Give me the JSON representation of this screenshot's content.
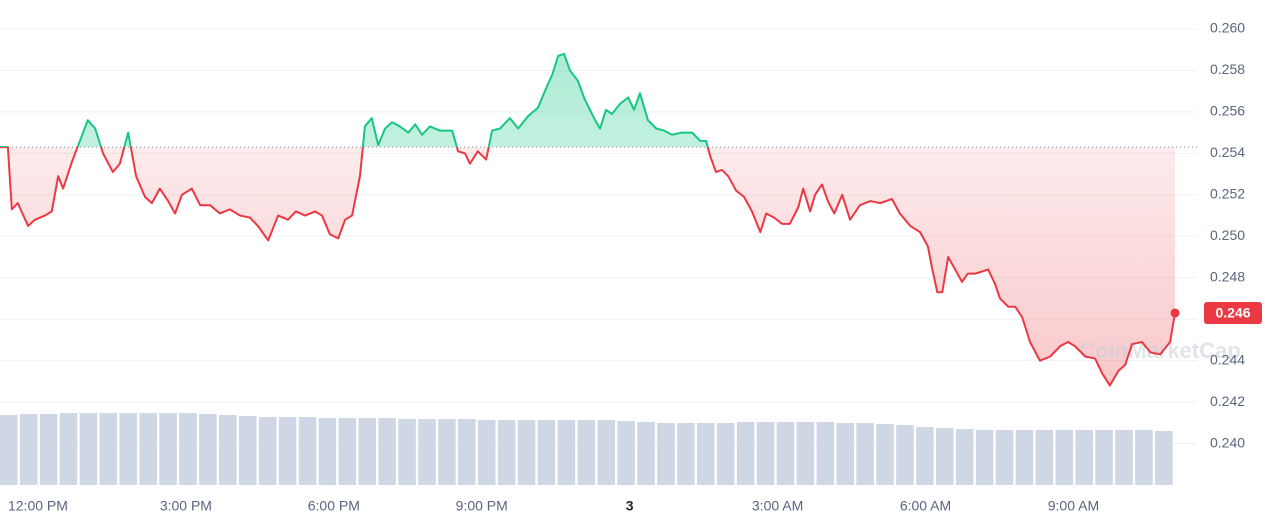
{
  "chart_data": {
    "type": "line",
    "watermark": "CoinMarketCap",
    "baseline": 0.2543,
    "up_color": "#16c784",
    "down_color": "#ea3943",
    "volume_color": "#cfd6e4",
    "grid": true,
    "xlim": [
      -0.77,
      23.06
    ],
    "xticks": [
      {
        "value": 0,
        "label": "12:00 PM"
      },
      {
        "value": 3,
        "label": "3:00 PM"
      },
      {
        "value": 6,
        "label": "6:00 PM"
      },
      {
        "value": 9,
        "label": "9:00 PM"
      },
      {
        "value": 12,
        "label": "3",
        "bold": true
      },
      {
        "value": 15,
        "label": "3:00 AM"
      },
      {
        "value": 18,
        "label": "6:00 AM"
      },
      {
        "value": 21,
        "label": "9:00 AM"
      }
    ],
    "ylim": [
      0.238,
      0.2614
    ],
    "yticks": [
      {
        "value": 0.24,
        "label": "0.240"
      },
      0.242,
      0.244,
      0.246,
      0.248,
      {
        "value": 0.25,
        "label": "0.250"
      },
      0.252,
      0.254,
      0.256,
      0.258,
      {
        "value": 0.26,
        "label": "0.260"
      }
    ],
    "last_label": "0.246",
    "series": [
      {
        "x": [
          -0.77,
          -0.61,
          -0.53,
          -0.41,
          -0.2,
          -0.06,
          0.14,
          0.28,
          0.41,
          0.51,
          0.69,
          0.85,
          1.01,
          1.16,
          1.32,
          1.52,
          1.66,
          1.83,
          1.99,
          2.17,
          2.31,
          2.47,
          2.64,
          2.78,
          2.92,
          3.12,
          3.29,
          3.49,
          3.69,
          3.89,
          4.1,
          4.3,
          4.46,
          4.67,
          4.87,
          5.07,
          5.23,
          5.42,
          5.62,
          5.76,
          5.92,
          6.09,
          6.23,
          6.37,
          6.53,
          6.63,
          6.77,
          6.9,
          7.04,
          7.18,
          7.34,
          7.51,
          7.65,
          7.79,
          7.95,
          8.15,
          8.4,
          8.52,
          8.66,
          8.76,
          8.92,
          9.09,
          9.21,
          9.37,
          9.57,
          9.74,
          9.94,
          10.14,
          10.28,
          10.43,
          10.55,
          10.67,
          10.79,
          10.95,
          11.09,
          11.3,
          11.4,
          11.52,
          11.64,
          11.81,
          11.97,
          12.09,
          12.21,
          12.37,
          12.54,
          12.7,
          12.86,
          13.06,
          13.27,
          13.43,
          13.55,
          13.63,
          13.75,
          13.87,
          14.0,
          14.16,
          14.32,
          14.48,
          14.65,
          14.77,
          14.93,
          15.09,
          15.25,
          15.42,
          15.52,
          15.66,
          15.76,
          15.9,
          16.02,
          16.15,
          16.31,
          16.47,
          16.67,
          16.88,
          17.08,
          17.32,
          17.48,
          17.69,
          17.89,
          18.05,
          18.13,
          18.24,
          18.34,
          18.46,
          18.6,
          18.74,
          18.86,
          19.01,
          19.15,
          19.27,
          19.41,
          19.51,
          19.68,
          19.82,
          19.96,
          20.12,
          20.32,
          20.53,
          20.73,
          20.89,
          21.03,
          21.24,
          21.44,
          21.58,
          21.74,
          21.91,
          22.05,
          22.19,
          22.39,
          22.56,
          22.76,
          22.96,
          23.06
        ],
        "values": [
          0.2543,
          0.2543,
          0.2513,
          0.2516,
          0.2505,
          0.2508,
          0.251,
          0.2512,
          0.2529,
          0.2523,
          0.2536,
          0.2546,
          0.2556,
          0.2552,
          0.254,
          0.2531,
          0.2535,
          0.255,
          0.2529,
          0.2519,
          0.2516,
          0.2523,
          0.2517,
          0.2511,
          0.252,
          0.2523,
          0.2515,
          0.2515,
          0.2511,
          0.2513,
          0.251,
          0.2509,
          0.2505,
          0.2498,
          0.251,
          0.2508,
          0.2512,
          0.251,
          0.2512,
          0.251,
          0.2501,
          0.2499,
          0.2508,
          0.251,
          0.2529,
          0.2553,
          0.2557,
          0.2544,
          0.2552,
          0.2555,
          0.2553,
          0.255,
          0.2554,
          0.2549,
          0.2553,
          0.2551,
          0.2551,
          0.2541,
          0.254,
          0.2535,
          0.2541,
          0.2537,
          0.2551,
          0.2552,
          0.2557,
          0.2552,
          0.2558,
          0.2562,
          0.257,
          0.2578,
          0.2587,
          0.2588,
          0.258,
          0.2575,
          0.2566,
          0.2556,
          0.2552,
          0.2561,
          0.2559,
          0.2564,
          0.2567,
          0.2561,
          0.2569,
          0.2556,
          0.2552,
          0.2551,
          0.2549,
          0.255,
          0.255,
          0.2546,
          0.2546,
          0.2539,
          0.2531,
          0.2532,
          0.2529,
          0.2522,
          0.2519,
          0.2512,
          0.2502,
          0.2511,
          0.2509,
          0.2506,
          0.2506,
          0.2514,
          0.2523,
          0.2512,
          0.252,
          0.2525,
          0.2517,
          0.2511,
          0.252,
          0.2508,
          0.2515,
          0.2517,
          0.2516,
          0.2518,
          0.2511,
          0.2505,
          0.2502,
          0.2495,
          0.2485,
          0.2473,
          0.2473,
          0.249,
          0.2484,
          0.2478,
          0.2482,
          0.2482,
          0.2483,
          0.2484,
          0.2477,
          0.247,
          0.2466,
          0.2466,
          0.2461,
          0.2449,
          0.244,
          0.2442,
          0.2447,
          0.2449,
          0.2447,
          0.2442,
          0.2441,
          0.2434,
          0.2428,
          0.2435,
          0.2438,
          0.2448,
          0.2449,
          0.2444,
          0.2443,
          0.2449,
          0.2463
        ]
      }
    ],
    "volume_lim": [
      0,
      100
    ],
    "volume": [
      70,
      71,
      71,
      72,
      72,
      72,
      72,
      72,
      72,
      72,
      71,
      70,
      69,
      68,
      68,
      68,
      67,
      67,
      67,
      67,
      66,
      66,
      66,
      66,
      65,
      65,
      65,
      65,
      65,
      65,
      65,
      64,
      63,
      62,
      62,
      62,
      62,
      63,
      63,
      63,
      63,
      63,
      62,
      62,
      61,
      60,
      58,
      57,
      56,
      55,
      55,
      55,
      55,
      55,
      55,
      55,
      55,
      55,
      54
    ]
  }
}
